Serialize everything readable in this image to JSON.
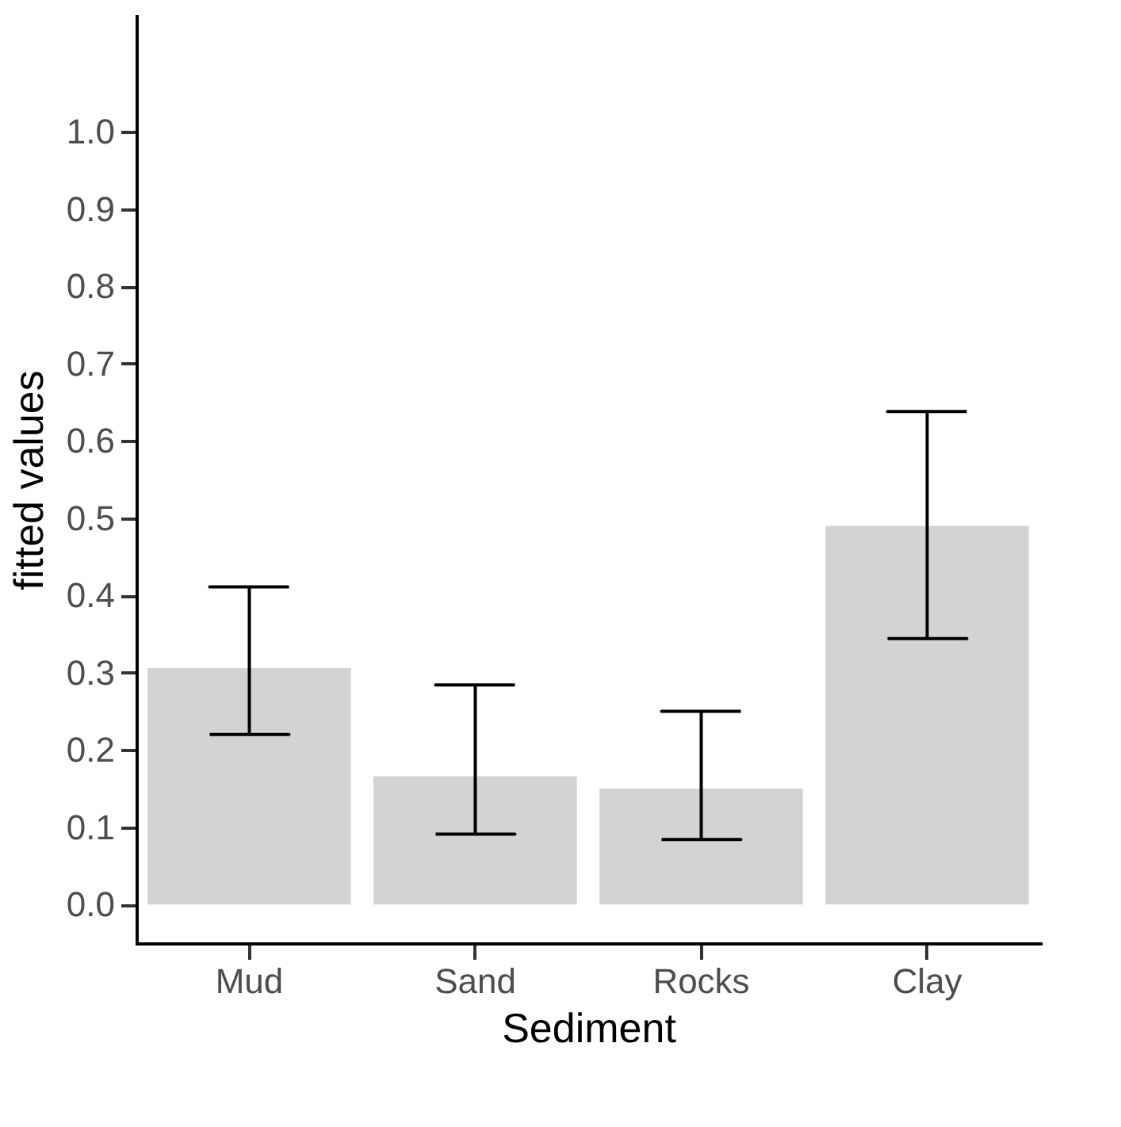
{
  "chart_data": {
    "type": "bar",
    "xlabel": "Sediment",
    "ylabel": "fitted values",
    "categories": [
      "Mud",
      "Sand",
      "Rocks",
      "Clay"
    ],
    "values": [
      0.306,
      0.166,
      0.15,
      0.49
    ],
    "errors": [
      [
        0.22,
        0.411
      ],
      [
        0.091,
        0.284
      ],
      [
        0.084,
        0.25
      ],
      [
        0.344,
        0.638
      ]
    ],
    "color": "#d3d3d3",
    "ylim": [
      -0.05,
      1.15
    ],
    "yticks": [
      {
        "value": 0,
        "label": "0.0"
      },
      0.1,
      0.2,
      0.3,
      0.4,
      0.5,
      0.6,
      0.7,
      0.8,
      0.9,
      {
        "value": 1,
        "label": "1.0"
      }
    ],
    "grid": false
  }
}
